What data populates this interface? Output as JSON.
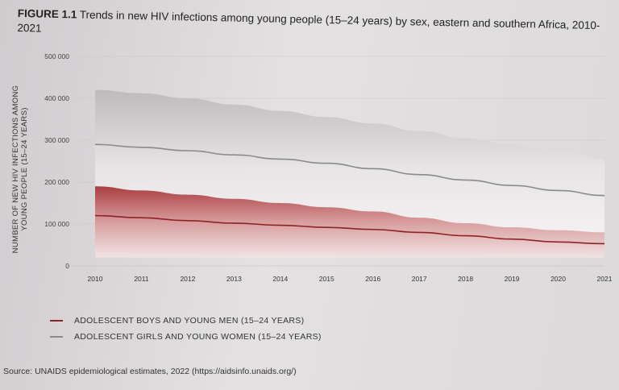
{
  "figure": {
    "number": "FIGURE 1.1",
    "title": "Trends in new HIV infections among young people (15–24 years) by sex, eastern and southern Africa, 2010-2021"
  },
  "source": "Source: UNAIDS epidemiological estimates, 2022 (https://aidsinfo.unaids.org/)",
  "colors": {
    "men": "#8e2226",
    "women": "#8a8a8a"
  },
  "chart_data": {
    "type": "line",
    "title": "Trends in new HIV infections among young people (15–24 years) by sex, eastern and southern Africa, 2010-2021",
    "ylabel": "NUMBER OF NEW HIV INFECTIONS AMONG YOUNG PEOPLE (15–24 YEARS)",
    "xlabel": "",
    "ylim": [
      0,
      500000
    ],
    "yticks": [
      "0",
      "100 000",
      "200 000",
      "300 000",
      "400 000",
      "500 000"
    ],
    "x": [
      "2010",
      "2011",
      "2012",
      "2013",
      "2014",
      "2015",
      "2016",
      "2017",
      "2018",
      "2019",
      "2020",
      "2021"
    ],
    "grid": true,
    "legend": "bottom-left",
    "series": [
      {
        "name": "ADOLESCENT BOYS AND YOUNG MEN (15–24 YEARS)",
        "values": [
          120000,
          115000,
          108000,
          102000,
          97000,
          92000,
          87000,
          80000,
          72000,
          64000,
          57000,
          53000
        ],
        "lower": [
          20000,
          20000,
          20000,
          20000,
          20000,
          20000,
          20000,
          20000,
          20000,
          20000,
          20000,
          20000
        ],
        "upper": [
          190000,
          180000,
          170000,
          160000,
          150000,
          140000,
          130000,
          115000,
          102000,
          92000,
          85000,
          80000
        ]
      },
      {
        "name": "ADOLESCENT GIRLS AND YOUNG WOMEN (15–24 YEARS)",
        "values": [
          290000,
          283000,
          275000,
          265000,
          255000,
          245000,
          232000,
          218000,
          205000,
          192000,
          180000,
          168000
        ],
        "lower": [
          190000,
          180000,
          170000,
          160000,
          150000,
          140000,
          130000,
          115000,
          102000,
          92000,
          85000,
          80000
        ],
        "upper": [
          420000,
          412000,
          400000,
          385000,
          370000,
          355000,
          340000,
          322000,
          305000,
          290000,
          272000,
          255000
        ]
      }
    ]
  }
}
